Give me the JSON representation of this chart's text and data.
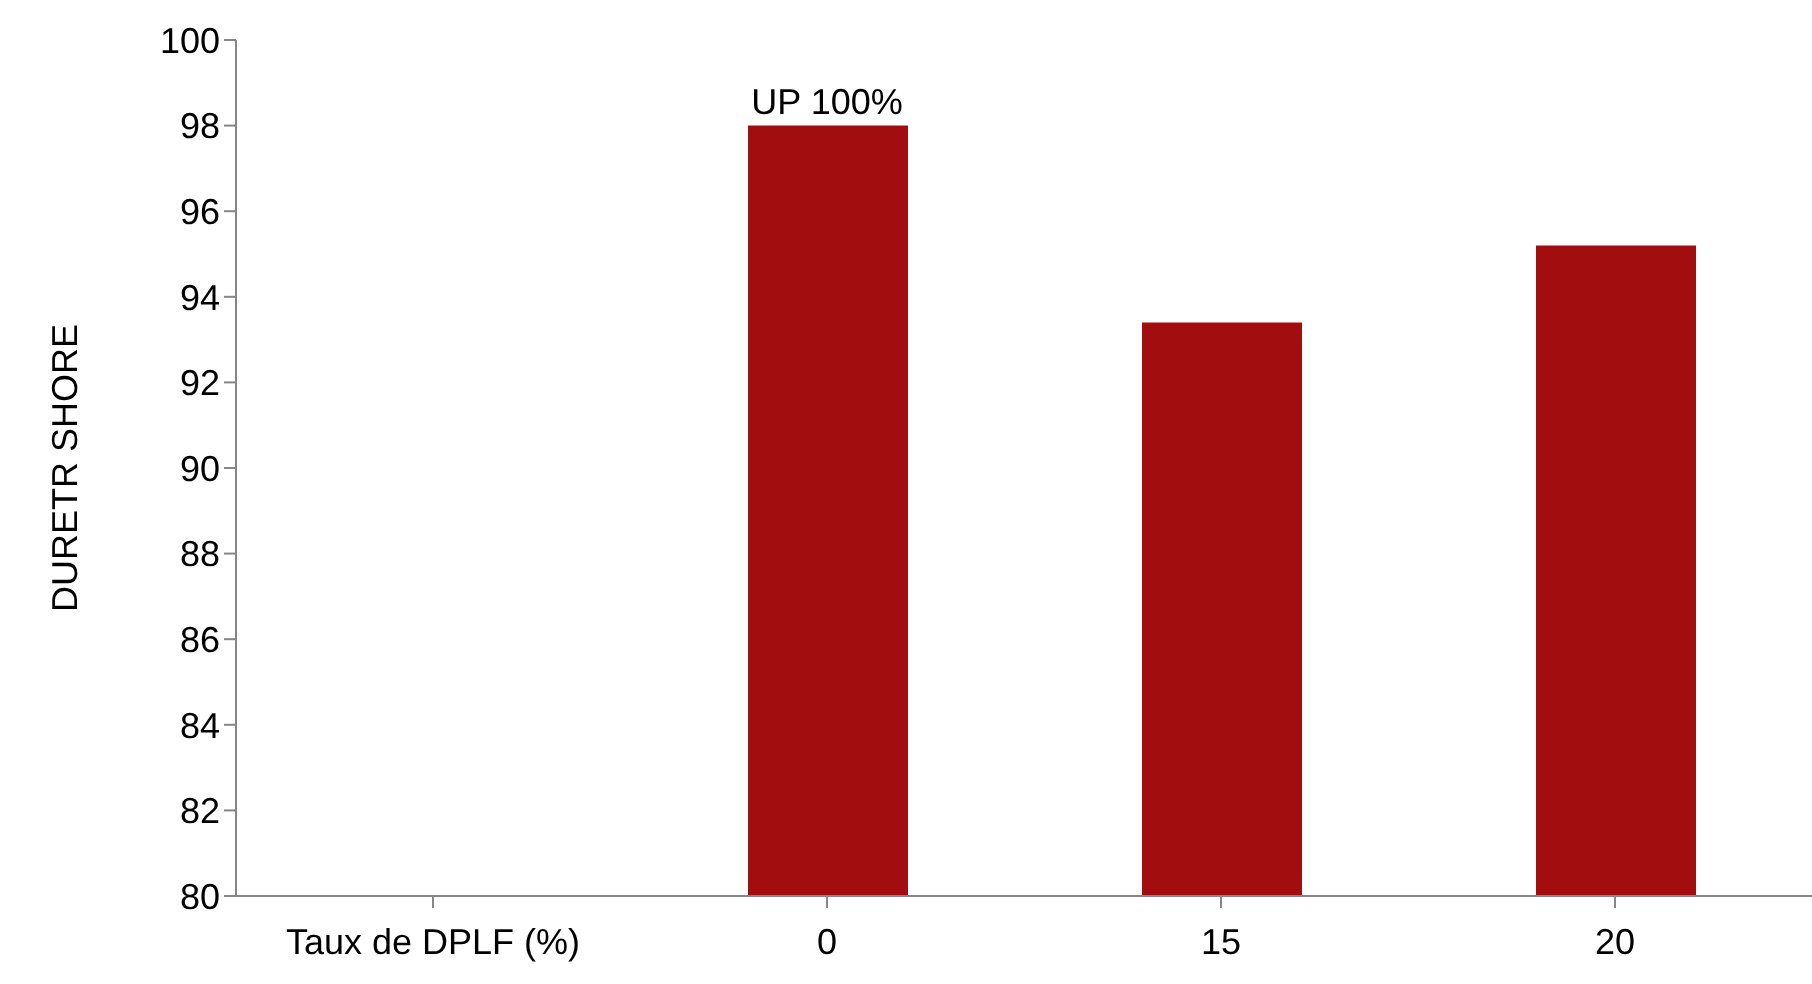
{
  "chart_data": {
    "type": "bar",
    "ylabel": "DURETR SHORE",
    "categories": [
      "Taux de DPLF (%)",
      "0",
      "15",
      "20"
    ],
    "values": [
      null,
      98,
      93.4,
      95.2
    ],
    "color": "#a20d0f",
    "ylim": [
      80,
      100
    ],
    "yticks": [
      80,
      82,
      84,
      86,
      88,
      90,
      92,
      94,
      96,
      98,
      100
    ],
    "grid": false,
    "legend": false,
    "annotations": [
      {
        "text": "UP 100%",
        "x": "0",
        "y": 98
      }
    ]
  }
}
